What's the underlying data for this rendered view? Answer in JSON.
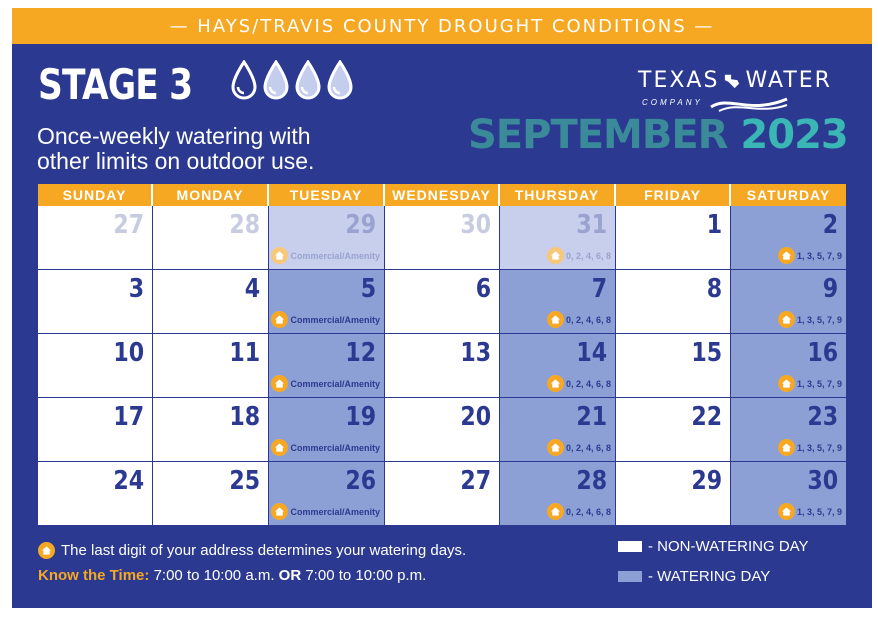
{
  "banner": "— HAYS/TRAVIS COUNTY DROUGHT CONDITIONS —",
  "stage": "STAGE 3",
  "subtitle": [
    "Once-weekly watering with",
    "other limits on outdoor use."
  ],
  "logo": {
    "left": "TEXAS",
    "right": "WATER",
    "sub": "COMPANY"
  },
  "month": "SEPTEMBER",
  "year": "2023",
  "colors": {
    "navy": "#2b3990",
    "orange": "#f7a823",
    "watering": "#8da0d6",
    "teal": "#3ab6b4"
  },
  "weekdays": [
    "SUNDAY",
    "MONDAY",
    "TUESDAY",
    "WEDNESDAY",
    "THURSDAY",
    "FRIDAY",
    "SATURDAY"
  ],
  "weeks": [
    [
      {
        "day": "27",
        "state": "prev"
      },
      {
        "day": "28",
        "state": "prev"
      },
      {
        "day": "29",
        "state": "prev-w",
        "tag": "Commercial/Amenity"
      },
      {
        "day": "30",
        "state": "prev"
      },
      {
        "day": "31",
        "state": "prev-w",
        "tag": "0, 2, 4, 6, 8"
      },
      {
        "day": "1",
        "state": "normal"
      },
      {
        "day": "2",
        "state": "w",
        "tag": "1, 3, 5, 7, 9"
      }
    ],
    [
      {
        "day": "3",
        "state": "normal"
      },
      {
        "day": "4",
        "state": "normal"
      },
      {
        "day": "5",
        "state": "w",
        "tag": "Commercial/Amenity"
      },
      {
        "day": "6",
        "state": "normal"
      },
      {
        "day": "7",
        "state": "w",
        "tag": "0, 2, 4, 6, 8"
      },
      {
        "day": "8",
        "state": "normal"
      },
      {
        "day": "9",
        "state": "w",
        "tag": "1, 3, 5, 7, 9"
      }
    ],
    [
      {
        "day": "10",
        "state": "normal"
      },
      {
        "day": "11",
        "state": "normal"
      },
      {
        "day": "12",
        "state": "w",
        "tag": "Commercial/Amenity"
      },
      {
        "day": "13",
        "state": "normal"
      },
      {
        "day": "14",
        "state": "w",
        "tag": "0, 2, 4, 6, 8"
      },
      {
        "day": "15",
        "state": "normal"
      },
      {
        "day": "16",
        "state": "w",
        "tag": "1, 3, 5, 7, 9"
      }
    ],
    [
      {
        "day": "17",
        "state": "normal"
      },
      {
        "day": "18",
        "state": "normal"
      },
      {
        "day": "19",
        "state": "w",
        "tag": "Commercial/Amenity"
      },
      {
        "day": "20",
        "state": "normal"
      },
      {
        "day": "21",
        "state": "w",
        "tag": "0, 2, 4, 6, 8"
      },
      {
        "day": "22",
        "state": "normal"
      },
      {
        "day": "23",
        "state": "w",
        "tag": "1, 3, 5, 7, 9"
      }
    ],
    [
      {
        "day": "24",
        "state": "normal"
      },
      {
        "day": "25",
        "state": "normal"
      },
      {
        "day": "26",
        "state": "w",
        "tag": "Commercial/Amenity"
      },
      {
        "day": "27",
        "state": "normal"
      },
      {
        "day": "28",
        "state": "w",
        "tag": "0, 2, 4, 6, 8"
      },
      {
        "day": "29",
        "state": "normal"
      },
      {
        "day": "30",
        "state": "w",
        "tag": "1, 3, 5, 7, 9"
      }
    ]
  ],
  "footer": {
    "note": "The last digit of your address determines your watering days.",
    "know_label": "Know the Time:",
    "time1": "7:00 to 10:00 a.m.",
    "or": "OR",
    "time2": "7:00 to 10:00 p.m."
  },
  "legend": {
    "non_watering": "- NON-WATERING DAY",
    "watering": "- WATERING DAY"
  }
}
